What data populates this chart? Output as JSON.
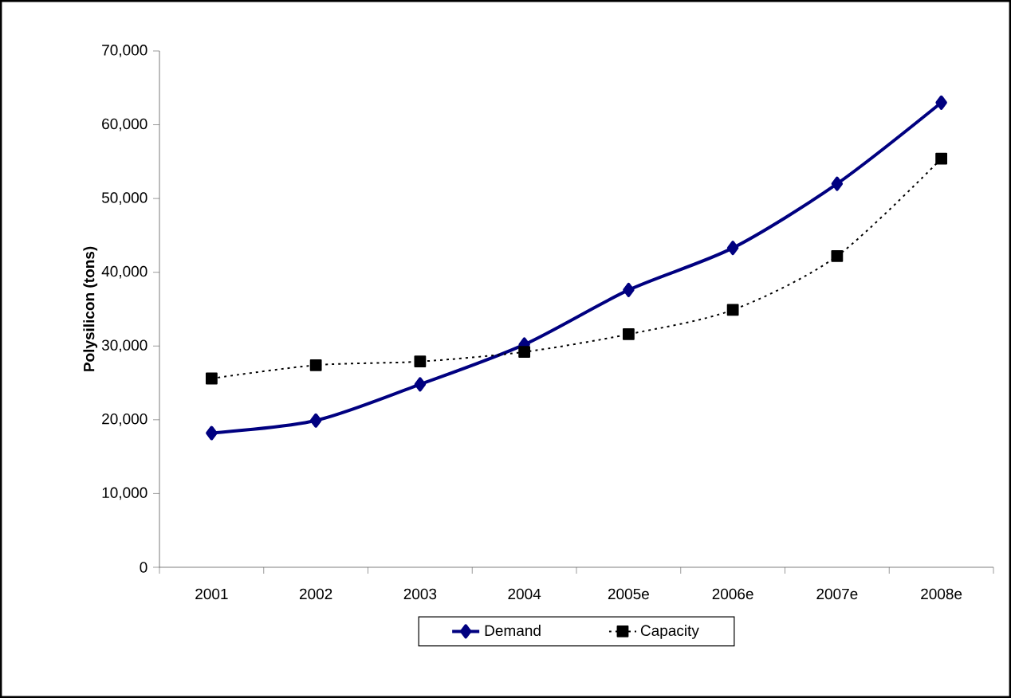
{
  "chart_data": {
    "type": "line",
    "ylabel": "Polysilicon (tons)",
    "categories": [
      "2001",
      "2002",
      "2003",
      "2004",
      "2005e",
      "2006e",
      "2007e",
      "2008e"
    ],
    "series": [
      {
        "name": "Demand",
        "color": "#000080",
        "values": [
          18200,
          19900,
          24800,
          30200,
          37600,
          43300,
          52000,
          63000
        ],
        "marker": "diamond",
        "line_style": "solid"
      },
      {
        "name": "Capacity",
        "color": "#000000",
        "values": [
          25600,
          27400,
          27900,
          29200,
          31600,
          34900,
          42200,
          55400
        ],
        "marker": "square",
        "line_style": "dotted"
      }
    ],
    "ylim": [
      0,
      70000
    ],
    "yticks": [
      {
        "value": 0,
        "label": "0"
      },
      {
        "value": 10000,
        "label": "10,000"
      },
      {
        "value": 20000,
        "label": "20,000"
      },
      {
        "value": 30000,
        "label": "30,000"
      },
      {
        "value": 40000,
        "label": "40,000"
      },
      {
        "value": 50000,
        "label": "50,000"
      },
      {
        "value": 60000,
        "label": "60,000"
      },
      {
        "value": 70000,
        "label": "70,000"
      }
    ],
    "grid": false,
    "legend": "bottom"
  }
}
